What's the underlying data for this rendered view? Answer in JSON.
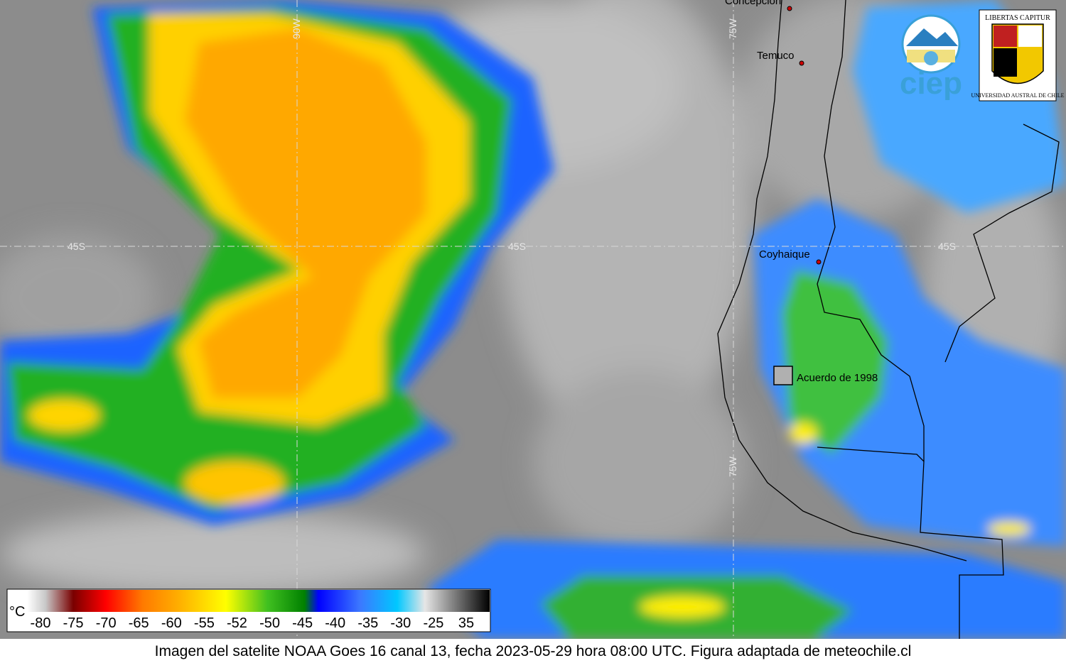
{
  "map": {
    "grid_labels": [
      "90W",
      "75W",
      "75W",
      "45S",
      "45S",
      "45S"
    ],
    "cities": [
      "Concepción",
      "Temuco",
      "Coyhaique"
    ],
    "annotation": "Acuerdo de 1998",
    "logos": {
      "ciep": "ciep",
      "motto": "LIBERTAS CAPITUR",
      "university": "UNIVERSIDAD AUSTRAL DE CHILE"
    }
  },
  "colorbar": {
    "unit": "°C",
    "ticks": [
      -80,
      -75,
      -70,
      -65,
      -60,
      -55,
      -52,
      -50,
      -45,
      -40,
      -35,
      -30,
      -25,
      35
    ]
  },
  "caption": "Imagen del satelite NOAA Goes 16 canal 13, fecha 2023-05-29 hora 08:00 UTC. Figura adaptada de meteochile.cl"
}
